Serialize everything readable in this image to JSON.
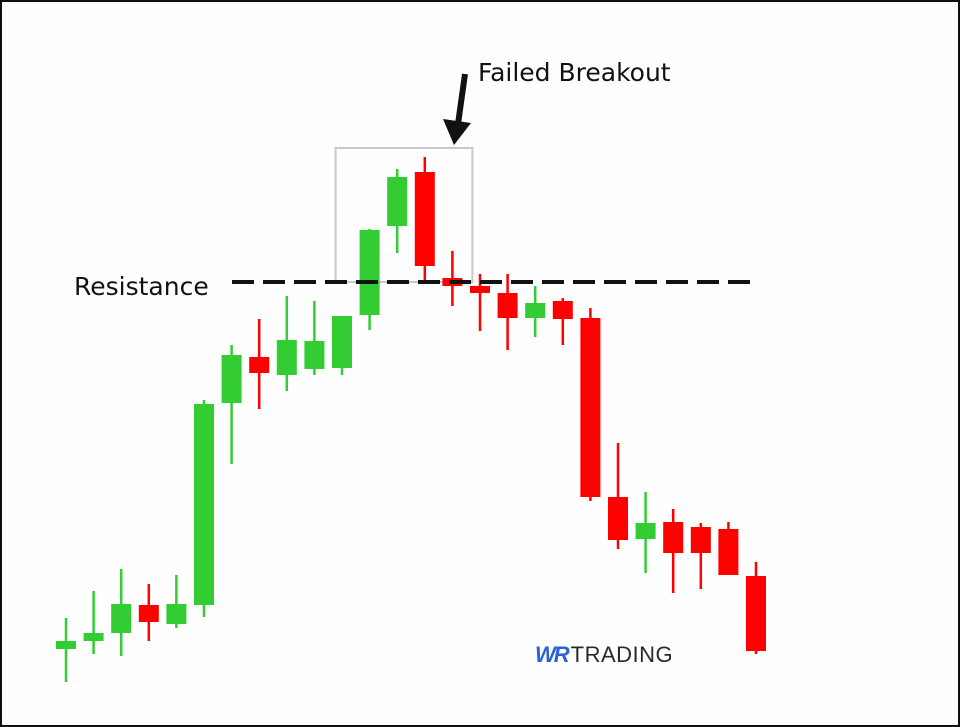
{
  "annotations": {
    "failed_breakout": "Failed Breakout",
    "resistance": "Resistance"
  },
  "logo": {
    "wr": "WR",
    "trading": "TRADING"
  },
  "colors": {
    "bull": "#33cc33",
    "bear": "#ff0000",
    "logo_wr": "#2b62d6",
    "box": "#c8c8c8",
    "line": "#111111"
  },
  "chart_data": {
    "type": "candlestick",
    "resistance_level": 418,
    "breakout_box_candles": [
      12,
      14
    ],
    "candles": [
      {
        "o": 51,
        "c": 59,
        "h": 82,
        "l": 18
      },
      {
        "o": 59,
        "c": 67,
        "h": 109,
        "l": 46
      },
      {
        "o": 67,
        "c": 96,
        "h": 131,
        "l": 44
      },
      {
        "o": 95,
        "c": 78,
        "h": 116,
        "l": 59
      },
      {
        "o": 76,
        "c": 96,
        "h": 125,
        "l": 72
      },
      {
        "o": 95,
        "c": 296,
        "h": 300,
        "l": 83
      },
      {
        "o": 297,
        "c": 345,
        "h": 355,
        "l": 236
      },
      {
        "o": 343,
        "c": 327,
        "h": 381,
        "l": 291
      },
      {
        "o": 325,
        "c": 360,
        "h": 404,
        "l": 309
      },
      {
        "o": 331,
        "c": 359,
        "h": 399,
        "l": 325
      },
      {
        "o": 332,
        "c": 384,
        "h": 384,
        "l": 325
      },
      {
        "o": 385,
        "c": 470,
        "h": 471,
        "l": 370
      },
      {
        "o": 474,
        "c": 523,
        "h": 531,
        "l": 447
      },
      {
        "o": 528,
        "c": 434,
        "h": 543,
        "l": 420
      },
      {
        "o": 422,
        "c": 414,
        "h": 449,
        "l": 394
      },
      {
        "o": 414,
        "c": 407,
        "h": 426,
        "l": 369
      },
      {
        "o": 407,
        "c": 382,
        "h": 426,
        "l": 350
      },
      {
        "o": 382,
        "c": 397,
        "h": 414,
        "l": 363
      },
      {
        "o": 399,
        "c": 381,
        "h": 402,
        "l": 355
      },
      {
        "o": 382,
        "c": 203,
        "h": 392,
        "l": 199
      },
      {
        "o": 203,
        "c": 160,
        "h": 257,
        "l": 151
      },
      {
        "o": 161,
        "c": 177,
        "h": 208,
        "l": 127
      },
      {
        "o": 178,
        "c": 147,
        "h": 191,
        "l": 107
      },
      {
        "o": 173,
        "c": 147,
        "h": 177,
        "l": 111
      },
      {
        "o": 171,
        "c": 125,
        "h": 178,
        "l": 125
      },
      {
        "o": 124,
        "c": 49,
        "h": 138,
        "l": 46
      }
    ]
  }
}
